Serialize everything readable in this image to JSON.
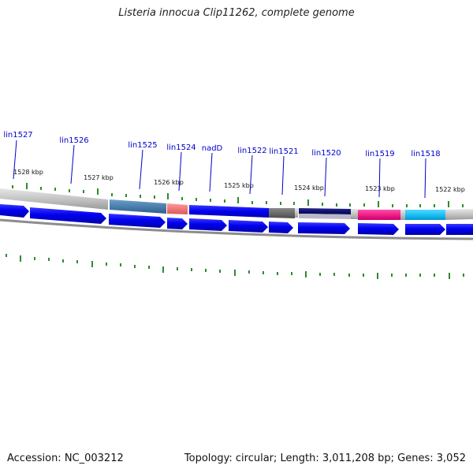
{
  "title": "Listeria innocua Clip11262, complete genome",
  "footer": {
    "accession": "Accession: NC_003212",
    "topology": "Topology: circular; Length: 3,011,208 bp; Genes: 3,052"
  },
  "colors": {
    "cds": "#0000ee",
    "backbone": "#c8c8c8",
    "tick": "#2e8b2e",
    "label": "#0000cc"
  },
  "scale_labels": [
    "1528 kbp",
    "1527 kbp",
    "1526 kbp",
    "1525 kbp",
    "1524 kbp",
    "1523 kbp",
    "1522 kbp"
  ],
  "gene_labels": [
    "lin1527",
    "lin1526",
    "lin1525",
    "lin1524",
    "nadD",
    "lin1522",
    "lin1521",
    "lin1520",
    "lin1519",
    "lin1518"
  ]
}
